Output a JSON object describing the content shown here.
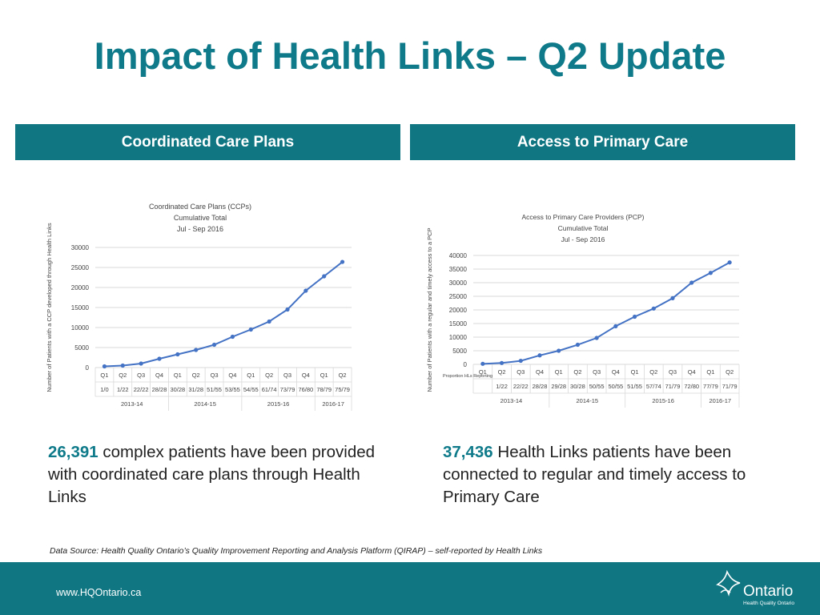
{
  "title": "Impact of Health Links – Q2 Update",
  "headers": {
    "left": "Coordinated Care Plans",
    "right": "Access to Primary Care"
  },
  "stats": {
    "left": {
      "number": "26,391",
      "text": "complex patients have been provided with coordinated care plans through Health Links"
    },
    "right": {
      "number": "37,436",
      "text": "Health Links patients have been connected to regular and timely access to Primary Care"
    }
  },
  "source": "Data Source:  Health Quality Ontario’s Quality Improvement Reporting and Analysis Platform (QIRAP) – self-reported by Health Links",
  "footer": {
    "url": "www.HQOntario.ca",
    "logo_word": "Ontario",
    "logo_sub": "Health Quality Ontario"
  },
  "colors": {
    "accent": "#0f7b8a",
    "bar": "#0f7682",
    "line": "#4472c4"
  },
  "chart_data": [
    {
      "type": "line",
      "title": "Coordinated Care Plans (CCPs)",
      "subtitle1": "Cumulative Total",
      "subtitle2": "Jul - Sep 2016",
      "ylabel": "Number of Patients with a CCP developed through Health Links",
      "ylim": [
        0,
        30000
      ],
      "yticks": [
        0,
        5000,
        10000,
        15000,
        20000,
        25000,
        30000
      ],
      "categories": [
        "Q1",
        "Q2",
        "Q3",
        "Q4",
        "Q1",
        "Q2",
        "Q3",
        "Q4",
        "Q1",
        "Q2",
        "Q3",
        "Q4",
        "Q1",
        "Q2"
      ],
      "reporting": [
        "1/0",
        "1/22",
        "22/22",
        "28/28",
        "30/28",
        "31/28",
        "51/55",
        "53/55",
        "54/55",
        "61/74",
        "73/79",
        "76/80",
        "78/79",
        "75/79"
      ],
      "groups": [
        {
          "label": "2013-14",
          "count": 4
        },
        {
          "label": "2014-15",
          "count": 4
        },
        {
          "label": "2015-16",
          "count": 4
        },
        {
          "label": "2016-17",
          "count": 2
        }
      ],
      "values": [
        300,
        500,
        1000,
        2200,
        3300,
        4400,
        5700,
        7700,
        9500,
        11500,
        14500,
        19200,
        22800,
        26391
      ]
    },
    {
      "type": "line",
      "title": "Access to Primary Care Providers (PCP)",
      "subtitle1": "Cumulative Total",
      "subtitle2": "Jul - Sep 2016",
      "ylabel": "Number of Patients with a regular and timely access to a PCP",
      "row_label": "Proportion HLs Reporting",
      "ylim": [
        0,
        40000
      ],
      "yticks": [
        0,
        5000,
        10000,
        15000,
        20000,
        25000,
        30000,
        35000,
        40000
      ],
      "categories": [
        "Q1",
        "Q2",
        "Q3",
        "Q4",
        "Q1",
        "Q2",
        "Q3",
        "Q4",
        "Q1",
        "Q2",
        "Q3",
        "Q4",
        "Q1",
        "Q2"
      ],
      "reporting": [
        "",
        "1/22",
        "22/22",
        "28/28",
        "29/28",
        "30/28",
        "50/55",
        "50/55",
        "51/55",
        "57/74",
        "71/79",
        "72/80",
        "77/79",
        "71/79"
      ],
      "groups": [
        {
          "label": "2013-14",
          "count": 4
        },
        {
          "label": "2014-15",
          "count": 4
        },
        {
          "label": "2015-16",
          "count": 4
        },
        {
          "label": "2016-17",
          "count": 2
        }
      ],
      "values": [
        200,
        500,
        1300,
        3300,
        5000,
        7200,
        9700,
        14000,
        17500,
        20500,
        24300,
        30000,
        33600,
        37436
      ]
    }
  ]
}
